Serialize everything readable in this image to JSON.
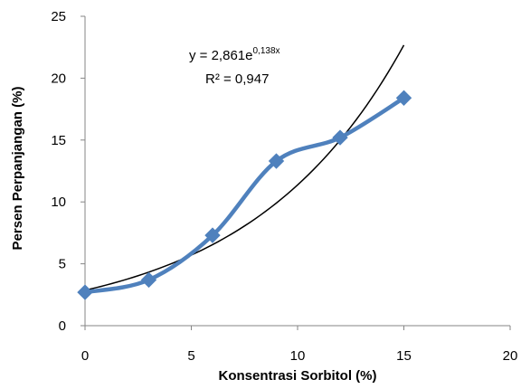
{
  "chart_data": {
    "type": "scatter",
    "title": "",
    "xlabel": "Konsentrasi Sorbitol (%)",
    "ylabel": "Persen Perpanjangan (%)",
    "xlim": [
      0,
      20
    ],
    "ylim": [
      0,
      25
    ],
    "x_ticks": [
      "0",
      "5",
      "10",
      "15",
      "20"
    ],
    "y_ticks": [
      "0",
      "5",
      "10",
      "15",
      "20",
      "25"
    ],
    "grid": false,
    "legend": "none",
    "series": [
      {
        "x": [
          0,
          3,
          6,
          9,
          12,
          15
        ],
        "y": [
          2.7,
          3.7,
          7.3,
          13.3,
          15.2,
          18.4
        ],
        "color": "#4f81bd",
        "marker": "diamond",
        "line": "smooth"
      }
    ],
    "trendline": {
      "type": "exponential",
      "a": 2.861,
      "b": 0.138,
      "color": "#000000",
      "x_range": [
        0,
        15
      ]
    },
    "annotations": {
      "equation_prefix": "y = 2,861e",
      "equation_exponent": "0,138x",
      "r_squared": "R² = 0,947"
    }
  }
}
